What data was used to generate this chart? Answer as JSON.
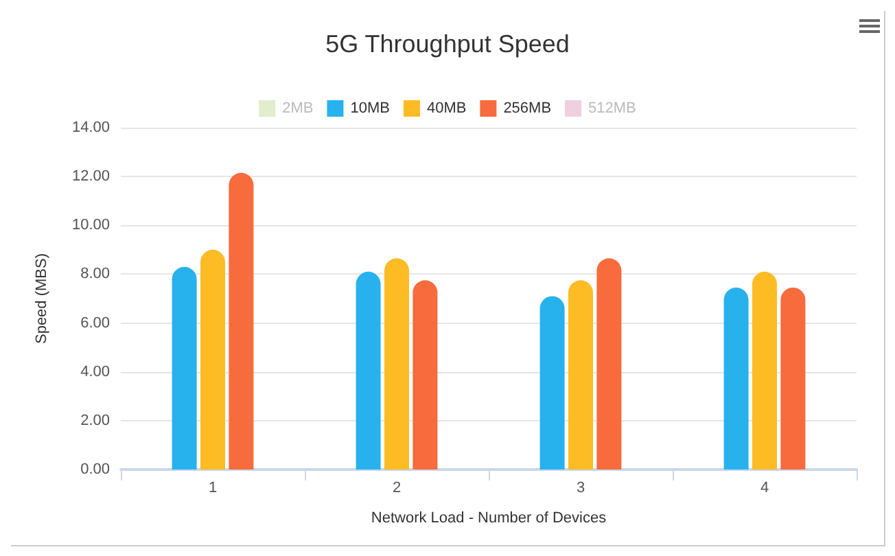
{
  "chart_data": {
    "type": "bar",
    "title": "5G Throughput Speed",
    "xlabel": "Network Load - Number of Devices",
    "ylabel": "Speed (MBS)",
    "categories": [
      "1",
      "2",
      "3",
      "4"
    ],
    "series": [
      {
        "name": "2MB",
        "color": "#e2edcc",
        "values": [
          null,
          null,
          null,
          null
        ]
      },
      {
        "name": "10MB",
        "color": "#27b2ed",
        "values": [
          8.3,
          8.1,
          7.1,
          7.45
        ]
      },
      {
        "name": "40MB",
        "color": "#fdbb24",
        "values": [
          9.0,
          8.65,
          7.75,
          8.1
        ]
      },
      {
        "name": "256MB",
        "color": "#f76b3d",
        "values": [
          12.15,
          7.75,
          8.65,
          7.45
        ]
      },
      {
        "name": "512MB",
        "color": "#f0cfe0",
        "values": [
          null,
          null,
          null,
          null
        ]
      }
    ],
    "ylim": [
      0,
      14
    ],
    "yticks": [
      {
        "value": 0,
        "label": "0.00"
      },
      {
        "value": 2,
        "label": "2.00"
      },
      {
        "value": 4,
        "label": "4.00"
      },
      {
        "value": 6,
        "label": "6.00"
      },
      {
        "value": 8,
        "label": "8.00"
      },
      {
        "value": 10,
        "label": "10.00"
      },
      {
        "value": 12,
        "label": "12.00"
      },
      {
        "value": 14,
        "label": "14.00"
      }
    ],
    "grid": "y",
    "legend": "top"
  }
}
